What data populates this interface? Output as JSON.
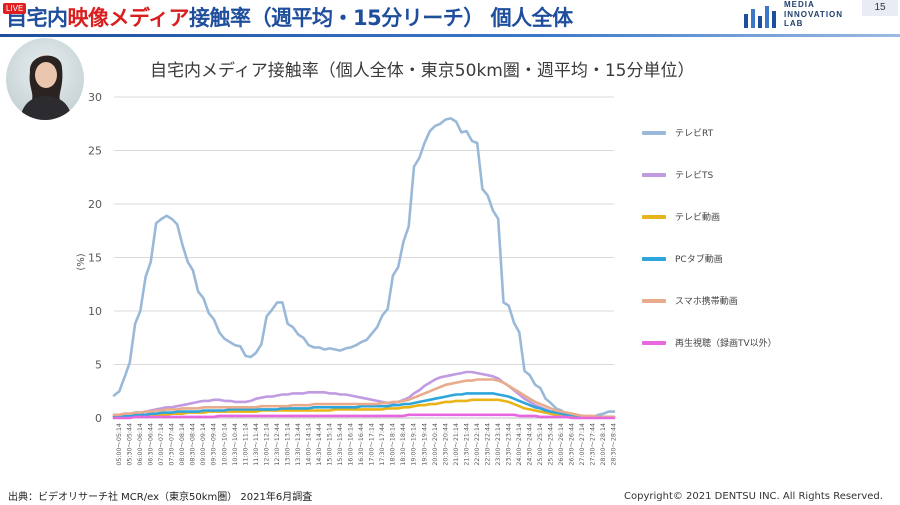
{
  "header": {
    "title_part1": "自宅内",
    "title_part2": "映像メディア",
    "title_part3": "接触率（週平均・15分リーチ） 個人全体",
    "live_badge": "LIVE",
    "logo_line1": "MEDIA",
    "logo_line2": "INNOVATION",
    "logo_line3": "LAB",
    "page_number": "15"
  },
  "footer": {
    "source": "出典：ビデオリサーチ社 MCR/ex（東京50km圏） 2021年6月調査",
    "copyright": "Copyright© 2021 DENTSU INC. All Rights Reserved."
  },
  "colors": {
    "title_blue": "#1f4e9c",
    "title_red": "#d81e1e",
    "tv_rt": "#9ab9d8",
    "tv_ts": "#c19be2",
    "tv_video": "#e8b418",
    "pc_tab_video": "#2ea6dc",
    "smartphone_video": "#e8ab8c",
    "playback": "#e866e0"
  },
  "chart_data": {
    "type": "line",
    "title": "自宅内メディア接触率（個人全体・東京50km圏・週平均・15分単位）",
    "ylabel": "(%)",
    "xlabel": "",
    "ylim": [
      0,
      30
    ],
    "yticks": [
      0,
      5,
      10,
      15,
      20,
      25,
      30
    ],
    "grid": "horizontal",
    "legend_position": "right",
    "x_tick_labels": [
      "05:00～05:14",
      "05:30～05:44",
      "06:00～06:14",
      "06:30～06:44",
      "07:00～07:14",
      "07:30～07:44",
      "08:00～08:14",
      "08:30～08:44",
      "09:00～09:14",
      "09:30～09:44",
      "10:00～10:14",
      "10:30～10:44",
      "11:00～11:14",
      "11:30～11:44",
      "12:00～12:14",
      "12:30～12:44",
      "13:00～13:14",
      "13:30～13:44",
      "14:00～14:14",
      "14:30～14:44",
      "15:00～15:14",
      "15:30～15:44",
      "16:00～16:14",
      "16:30～16:44",
      "17:00～17:14",
      "17:30～17:44",
      "18:00～18:14",
      "18:30～18:44",
      "19:00～19:14",
      "19:30～19:44",
      "20:00～20:14",
      "20:30～20:44",
      "21:00～21:14",
      "21:30～21:44",
      "22:00～22:14",
      "22:30～22:44",
      "23:00～23:14",
      "23:30～23:44",
      "24:00～24:14",
      "24:30～24:44",
      "25:00～25:14",
      "25:30～25:44",
      "26:00～26:14",
      "26:30～26:44",
      "27:00～27:14",
      "27:30～27:44",
      "28:00～28:14",
      "28:30～28:44"
    ],
    "points_per_series": 96,
    "series": [
      {
        "name": "テレビRT",
        "color_key": "tv_rt",
        "values": [
          2.1,
          2.5,
          3.8,
          5.2,
          8.8,
          10.0,
          13.2,
          14.6,
          18.2,
          18.6,
          18.9,
          18.6,
          18.1,
          16.2,
          14.6,
          13.8,
          11.8,
          11.2,
          9.8,
          9.2,
          8.0,
          7.4,
          7.1,
          6.8,
          6.7,
          5.8,
          5.7,
          6.1,
          6.9,
          9.5,
          10.1,
          10.8,
          10.8,
          8.8,
          8.5,
          7.8,
          7.5,
          6.8,
          6.6,
          6.6,
          6.4,
          6.5,
          6.4,
          6.3,
          6.5,
          6.6,
          6.8,
          7.1,
          7.3,
          7.9,
          8.5,
          9.6,
          10.2,
          13.3,
          14.1,
          16.5,
          17.9,
          23.5,
          24.3,
          25.7,
          26.8,
          27.3,
          27.5,
          27.9,
          28.0,
          27.7,
          26.7,
          26.8,
          25.9,
          25.7,
          21.4,
          20.8,
          19.4,
          18.6,
          10.8,
          10.5,
          8.9,
          8.0,
          4.4,
          4.0,
          3.1,
          2.8,
          1.8,
          1.4,
          0.9,
          0.7,
          0.3,
          0.2,
          0.1,
          0.1,
          0.1,
          0.1,
          0.3,
          0.4,
          0.6,
          0.6
        ]
      },
      {
        "name": "テレビTS",
        "color_key": "tv_ts",
        "values": [
          0.3,
          0.3,
          0.4,
          0.4,
          0.5,
          0.5,
          0.6,
          0.7,
          0.8,
          0.9,
          1.0,
          1.0,
          1.1,
          1.2,
          1.3,
          1.4,
          1.5,
          1.6,
          1.6,
          1.7,
          1.7,
          1.6,
          1.6,
          1.5,
          1.5,
          1.5,
          1.6,
          1.8,
          1.9,
          2.0,
          2.0,
          2.1,
          2.2,
          2.2,
          2.3,
          2.3,
          2.3,
          2.4,
          2.4,
          2.4,
          2.4,
          2.3,
          2.3,
          2.2,
          2.2,
          2.1,
          2.0,
          1.9,
          1.8,
          1.7,
          1.6,
          1.5,
          1.4,
          1.4,
          1.5,
          1.7,
          1.9,
          2.3,
          2.6,
          3.0,
          3.3,
          3.6,
          3.8,
          3.9,
          4.0,
          4.1,
          4.2,
          4.3,
          4.3,
          4.2,
          4.1,
          4.0,
          3.9,
          3.7,
          3.3,
          3.0,
          2.6,
          2.2,
          1.8,
          1.5,
          1.2,
          1.0,
          0.8,
          0.6,
          0.5,
          0.4,
          0.3,
          0.2,
          0.2,
          0.1,
          0.1,
          0.1,
          0.1,
          0.1,
          0.1,
          0.1
        ]
      },
      {
        "name": "テレビ動画",
        "color_key": "tv_video",
        "values": [
          0.1,
          0.1,
          0.1,
          0.2,
          0.2,
          0.2,
          0.2,
          0.3,
          0.3,
          0.3,
          0.3,
          0.4,
          0.4,
          0.4,
          0.5,
          0.5,
          0.5,
          0.5,
          0.6,
          0.6,
          0.6,
          0.6,
          0.6,
          0.6,
          0.6,
          0.6,
          0.6,
          0.6,
          0.7,
          0.7,
          0.7,
          0.7,
          0.7,
          0.7,
          0.7,
          0.7,
          0.7,
          0.7,
          0.7,
          0.7,
          0.7,
          0.7,
          0.8,
          0.8,
          0.8,
          0.8,
          0.8,
          0.8,
          0.8,
          0.8,
          0.8,
          0.8,
          0.9,
          0.9,
          0.9,
          1.0,
          1.0,
          1.1,
          1.2,
          1.2,
          1.3,
          1.3,
          1.4,
          1.5,
          1.5,
          1.6,
          1.6,
          1.6,
          1.7,
          1.7,
          1.7,
          1.7,
          1.7,
          1.7,
          1.6,
          1.5,
          1.3,
          1.1,
          0.9,
          0.8,
          0.7,
          0.6,
          0.5,
          0.4,
          0.3,
          0.3,
          0.2,
          0.2,
          0.1,
          0.1,
          0.1,
          0.1,
          0.1,
          0.1,
          0.1,
          0.1
        ]
      },
      {
        "name": "PCタブ動画",
        "color_key": "pc_tab_video",
        "values": [
          0.1,
          0.2,
          0.2,
          0.2,
          0.3,
          0.3,
          0.3,
          0.4,
          0.4,
          0.5,
          0.5,
          0.5,
          0.6,
          0.6,
          0.6,
          0.6,
          0.6,
          0.7,
          0.7,
          0.7,
          0.7,
          0.7,
          0.8,
          0.8,
          0.8,
          0.8,
          0.8,
          0.8,
          0.8,
          0.8,
          0.8,
          0.8,
          0.9,
          0.9,
          0.9,
          0.9,
          0.9,
          0.9,
          1.0,
          1.0,
          1.0,
          1.0,
          1.0,
          1.0,
          1.0,
          1.0,
          1.0,
          1.1,
          1.1,
          1.1,
          1.1,
          1.1,
          1.1,
          1.2,
          1.2,
          1.3,
          1.3,
          1.4,
          1.5,
          1.6,
          1.7,
          1.8,
          1.9,
          2.0,
          2.1,
          2.2,
          2.2,
          2.3,
          2.3,
          2.3,
          2.3,
          2.3,
          2.3,
          2.2,
          2.1,
          2.0,
          1.8,
          1.6,
          1.4,
          1.2,
          1.0,
          0.9,
          0.7,
          0.6,
          0.5,
          0.4,
          0.3,
          0.3,
          0.2,
          0.2,
          0.1,
          0.1,
          0.1,
          0.1,
          0.1,
          0.1
        ]
      },
      {
        "name": "スマホ携帯動画",
        "color_key": "smartphone_video",
        "values": [
          0.3,
          0.3,
          0.4,
          0.4,
          0.5,
          0.5,
          0.6,
          0.6,
          0.7,
          0.7,
          0.8,
          0.8,
          0.8,
          0.9,
          0.9,
          0.9,
          0.9,
          1.0,
          1.0,
          1.0,
          1.0,
          1.0,
          1.0,
          1.0,
          1.0,
          1.0,
          1.0,
          1.0,
          1.1,
          1.1,
          1.1,
          1.1,
          1.1,
          1.1,
          1.2,
          1.2,
          1.2,
          1.2,
          1.3,
          1.3,
          1.3,
          1.3,
          1.3,
          1.3,
          1.3,
          1.3,
          1.3,
          1.3,
          1.3,
          1.3,
          1.3,
          1.4,
          1.4,
          1.5,
          1.5,
          1.6,
          1.7,
          1.9,
          2.1,
          2.3,
          2.5,
          2.7,
          2.9,
          3.1,
          3.2,
          3.3,
          3.4,
          3.5,
          3.5,
          3.6,
          3.6,
          3.6,
          3.6,
          3.5,
          3.3,
          3.0,
          2.7,
          2.4,
          2.1,
          1.8,
          1.5,
          1.3,
          1.1,
          0.9,
          0.7,
          0.6,
          0.5,
          0.4,
          0.3,
          0.2,
          0.2,
          0.2,
          0.1,
          0.1,
          0.1,
          0.1
        ]
      },
      {
        "name": "再生視聴（録画TV以外）",
        "color_key": "playback",
        "values": [
          0.0,
          0.0,
          0.0,
          0.0,
          0.1,
          0.1,
          0.1,
          0.1,
          0.1,
          0.1,
          0.1,
          0.1,
          0.1,
          0.1,
          0.1,
          0.1,
          0.1,
          0.1,
          0.1,
          0.1,
          0.2,
          0.2,
          0.2,
          0.2,
          0.2,
          0.2,
          0.2,
          0.2,
          0.2,
          0.2,
          0.2,
          0.2,
          0.2,
          0.2,
          0.2,
          0.2,
          0.2,
          0.2,
          0.2,
          0.2,
          0.2,
          0.2,
          0.2,
          0.2,
          0.2,
          0.2,
          0.2,
          0.2,
          0.2,
          0.2,
          0.2,
          0.2,
          0.2,
          0.2,
          0.2,
          0.2,
          0.3,
          0.3,
          0.3,
          0.3,
          0.3,
          0.3,
          0.3,
          0.3,
          0.3,
          0.3,
          0.3,
          0.3,
          0.3,
          0.3,
          0.3,
          0.3,
          0.3,
          0.3,
          0.3,
          0.3,
          0.3,
          0.2,
          0.2,
          0.2,
          0.2,
          0.1,
          0.1,
          0.1,
          0.1,
          0.1,
          0.1,
          0.0,
          0.0,
          0.0,
          0.0,
          0.0,
          0.0,
          0.0,
          0.0,
          0.0
        ]
      }
    ]
  }
}
